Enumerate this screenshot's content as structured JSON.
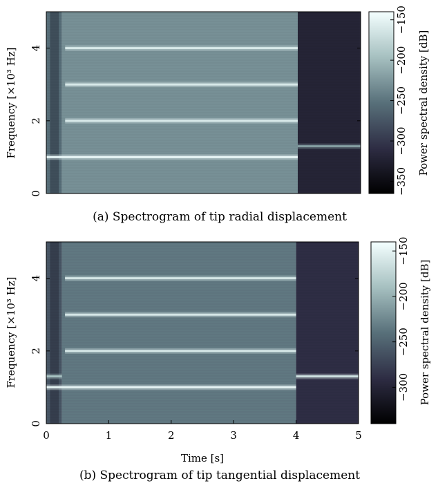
{
  "chart_data": [
    {
      "type": "heatmap",
      "panel_label": "(a)",
      "caption": "(a) Spectrogram of tip radial displacement",
      "title": "",
      "xlabel": "",
      "ylabel": "Frequency [×10³ Hz]",
      "xlim": [
        0,
        5
      ],
      "ylim": [
        0,
        5
      ],
      "x_ticks": [],
      "y_ticks": [
        "0",
        "2",
        "4"
      ],
      "y_tick_values": [
        0,
        2,
        4
      ],
      "colorbar": {
        "label": "Power spectral density [dB]",
        "range": [
          -365,
          -140
        ],
        "ticks": [
          "−350",
          "−300",
          "−250",
          "−200",
          "−150"
        ],
        "tick_values": [
          -350,
          -300,
          -250,
          -200,
          -150
        ]
      },
      "regions": [
        {
          "x": [
            0,
            0.25
          ],
          "level_db": -255
        },
        {
          "x": [
            0.25,
            4.0
          ],
          "level_db": -230
        },
        {
          "x": [
            4.0,
            5.0
          ],
          "level_db": -320
        }
      ],
      "lines": [
        {
          "freq_khz": 1.0,
          "x": [
            0,
            4.0
          ],
          "level_db": -150
        },
        {
          "freq_khz": 2.0,
          "x": [
            0.3,
            4.0
          ],
          "level_db": -160
        },
        {
          "freq_khz": 3.0,
          "x": [
            0.3,
            4.0
          ],
          "level_db": -160
        },
        {
          "freq_khz": 4.0,
          "x": [
            0.3,
            4.0
          ],
          "level_db": -160
        },
        {
          "freq_khz": 1.3,
          "x": [
            4.0,
            5.0
          ],
          "level_db": -220
        }
      ]
    },
    {
      "type": "heatmap",
      "panel_label": "(b)",
      "caption": "(b) Spectrogram of tip tangential displacement",
      "title": "",
      "xlabel": "Time [s]",
      "ylabel": "Frequency [×10³ Hz]",
      "xlim": [
        0,
        5
      ],
      "ylim": [
        0,
        5
      ],
      "x_ticks": [
        "0",
        "1",
        "2",
        "3",
        "4",
        "5"
      ],
      "x_tick_values": [
        0,
        1,
        2,
        3,
        4,
        5
      ],
      "y_ticks": [
        "0",
        "2",
        "4"
      ],
      "y_tick_values": [
        0,
        2,
        4
      ],
      "colorbar": {
        "label": "Power spectral density [dB]",
        "range": [
          -340,
          -140
        ],
        "ticks": [
          "−300",
          "−250",
          "−200",
          "−150"
        ],
        "tick_values": [
          -300,
          -250,
          -200,
          -150
        ]
      },
      "regions": [
        {
          "x": [
            0,
            0.25
          ],
          "level_db": -260
        },
        {
          "x": [
            0.25,
            4.0
          ],
          "level_db": -235
        },
        {
          "x": [
            4.0,
            5.0
          ],
          "level_db": -290
        }
      ],
      "lines": [
        {
          "freq_khz": 1.0,
          "x": [
            0,
            4.0
          ],
          "level_db": -150
        },
        {
          "freq_khz": 1.3,
          "x": [
            0,
            0.25
          ],
          "level_db": -190
        },
        {
          "freq_khz": 2.0,
          "x": [
            0.3,
            4.0
          ],
          "level_db": -160
        },
        {
          "freq_khz": 3.0,
          "x": [
            0.3,
            4.0
          ],
          "level_db": -160
        },
        {
          "freq_khz": 4.0,
          "x": [
            0.3,
            4.0
          ],
          "level_db": -160
        },
        {
          "freq_khz": 1.3,
          "x": [
            4.0,
            5.0
          ],
          "level_db": -165
        }
      ]
    }
  ]
}
